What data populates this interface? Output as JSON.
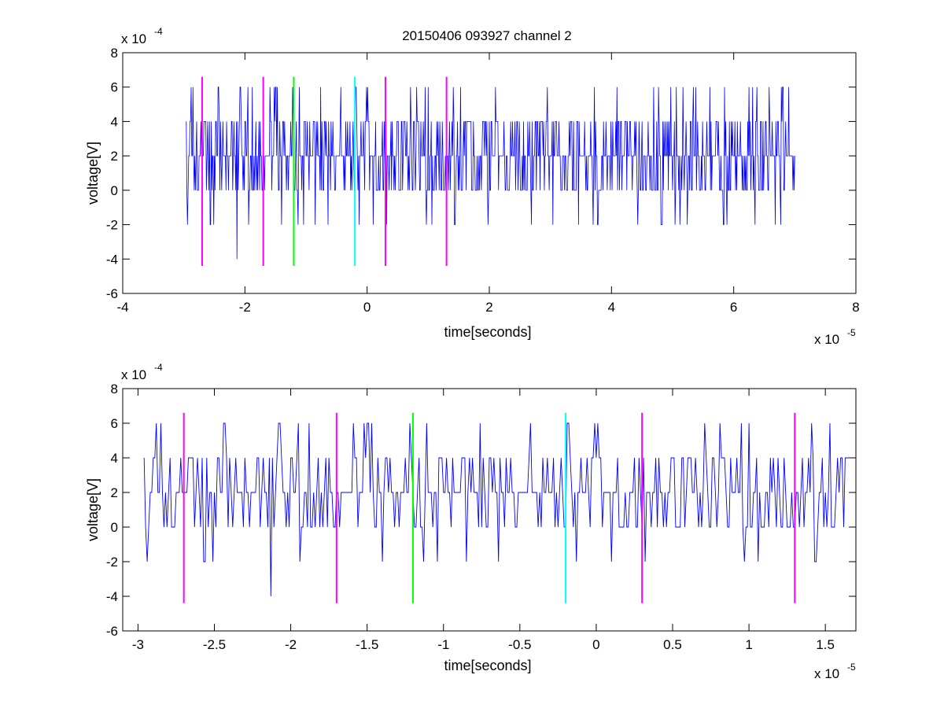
{
  "figure_title": "20150406 093927 channel 2",
  "colors": {
    "signal": "#0000ff",
    "magenta": "#ff00ff",
    "green": "#00ff00",
    "cyan": "#00ffff",
    "axes": "#000000"
  },
  "chart_data": [
    {
      "type": "line",
      "title": "20150406 093927 channel 2",
      "xlabel": "time[seconds]",
      "ylabel": "voltage[V]",
      "x_exponent_label": "x 10",
      "x_exponent": "-5",
      "y_exponent_label": "x 10",
      "y_exponent": "-4",
      "xlim": [
        -4,
        8
      ],
      "ylim": [
        -6,
        8
      ],
      "xticks": [
        -4,
        -2,
        0,
        2,
        4,
        6,
        8
      ],
      "xtick_labels": [
        "-4",
        "-2",
        "0",
        "2",
        "4",
        "6",
        "8"
      ],
      "yticks": [
        -6,
        -4,
        -2,
        0,
        2,
        4,
        6,
        8
      ],
      "ytick_labels": [
        "-6",
        "-4",
        "-2",
        "0",
        "2",
        "4",
        "6",
        "8"
      ],
      "grid": false,
      "signal": {
        "x_start": -2.96,
        "x_end": 7.0,
        "quantum": 2,
        "level_values": [
          -2,
          0,
          2,
          4,
          6
        ]
      },
      "markers": [
        {
          "x": -2.7,
          "color": "magenta",
          "ymin": -4.4,
          "ymax": 6.6
        },
        {
          "x": -1.7,
          "color": "magenta",
          "ymin": -4.4,
          "ymax": 6.6
        },
        {
          "x": -1.2,
          "color": "green",
          "ymin": -4.4,
          "ymax": 6.6
        },
        {
          "x": -0.2,
          "color": "cyan",
          "ymin": -4.4,
          "ymax": 6.6
        },
        {
          "x": 0.3,
          "color": "magenta",
          "ymin": -4.4,
          "ymax": 6.6
        },
        {
          "x": 1.3,
          "color": "magenta",
          "ymin": -4.4,
          "ymax": 6.6
        }
      ]
    },
    {
      "type": "line",
      "title": "",
      "xlabel": "time[seconds]",
      "ylabel": "voltage[V]",
      "x_exponent_label": "x 10",
      "x_exponent": "-5",
      "y_exponent_label": "x 10",
      "y_exponent": "-4",
      "xlim": [
        -3.1,
        1.7
      ],
      "ylim": [
        -6,
        8
      ],
      "xticks": [
        -3,
        -2.5,
        -2,
        -1.5,
        -1,
        -0.5,
        0,
        0.5,
        1,
        1.5
      ],
      "xtick_labels": [
        "-3",
        "-2.5",
        "-2",
        "-1.5",
        "-1",
        "-0.5",
        "0",
        "0.5",
        "1",
        "1.5"
      ],
      "yticks": [
        -6,
        -4,
        -2,
        0,
        2,
        4,
        6,
        8
      ],
      "ytick_labels": [
        "-6",
        "-4",
        "-2",
        "0",
        "2",
        "4",
        "6",
        "8"
      ],
      "grid": false,
      "signal": {
        "x_start": -2.96,
        "x_end": 1.7,
        "quantum": 2,
        "level_values": [
          -4,
          -2,
          0,
          2,
          4,
          6
        ]
      },
      "markers": [
        {
          "x": -2.7,
          "color": "magenta",
          "ymin": -4.4,
          "ymax": 6.6
        },
        {
          "x": -1.7,
          "color": "magenta",
          "ymin": -4.4,
          "ymax": 6.6
        },
        {
          "x": -1.2,
          "color": "green",
          "ymin": -4.4,
          "ymax": 6.6
        },
        {
          "x": -0.2,
          "color": "cyan",
          "ymin": -4.4,
          "ymax": 6.6
        },
        {
          "x": 0.3,
          "color": "magenta",
          "ymin": -4.4,
          "ymax": 6.6
        },
        {
          "x": 1.3,
          "color": "magenta",
          "ymin": -4.4,
          "ymax": 6.6
        }
      ]
    }
  ]
}
